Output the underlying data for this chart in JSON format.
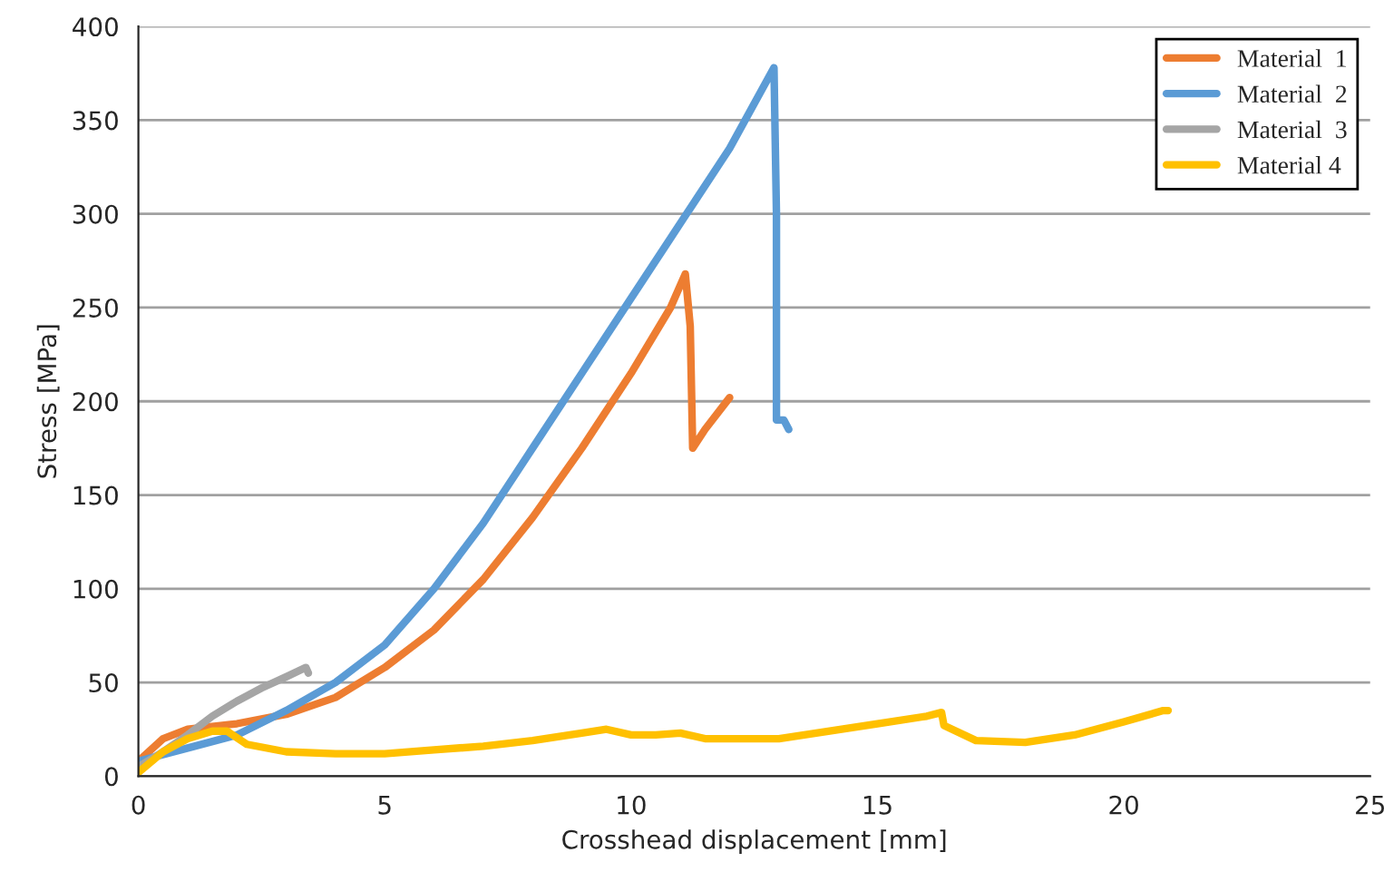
{
  "chart_data": {
    "type": "line",
    "xlabel": "Crosshead displacement [mm]",
    "ylabel": "Stress [MPa]",
    "xlim": [
      0,
      25
    ],
    "xticks": [
      0,
      5,
      10,
      15,
      20,
      25
    ],
    "ylim": [
      0,
      400
    ],
    "yticks": [
      0,
      50,
      100,
      150,
      200,
      250,
      300,
      350,
      400
    ],
    "grid": "y",
    "legend": "top right",
    "marker": "none",
    "line_style": "solid",
    "series": [
      {
        "name": "Material  1",
        "color": "#ed7d31",
        "x": [
          0,
          0.5,
          1,
          2,
          3,
          4,
          5,
          6,
          7,
          8,
          9,
          10,
          10.8,
          11.1,
          11.2,
          11.25,
          11.5,
          12
        ],
        "values": [
          8,
          20,
          25,
          28,
          33,
          42,
          58,
          78,
          105,
          138,
          175,
          215,
          250,
          268,
          240,
          175,
          185,
          202
        ]
      },
      {
        "name": "Material  2",
        "color": "#5b9bd5",
        "x": [
          0,
          1,
          2,
          3,
          4,
          5,
          6,
          7,
          8,
          9,
          10,
          11,
          12,
          12.9,
          12.95,
          12.95,
          13.1,
          13.2
        ],
        "values": [
          8,
          15,
          22,
          35,
          50,
          70,
          100,
          135,
          175,
          215,
          255,
          295,
          335,
          378,
          300,
          190,
          190,
          185
        ]
      },
      {
        "name": "Material  3",
        "color": "#a5a5a5",
        "x": [
          0,
          0.5,
          1,
          1.5,
          2,
          2.5,
          3,
          3.4,
          3.45
        ],
        "values": [
          5,
          13,
          22,
          32,
          40,
          47,
          53,
          58,
          55
        ]
      },
      {
        "name": "Material 4",
        "color": "#ffc000",
        "x": [
          0,
          0.5,
          1,
          1.5,
          1.8,
          2.2,
          3,
          4,
          5,
          6,
          7,
          8,
          9,
          9.5,
          10,
          10.5,
          11,
          11.5,
          12,
          13,
          14,
          15,
          16,
          16.3,
          16.35,
          17,
          18,
          19,
          20,
          20.8,
          20.9
        ],
        "values": [
          2,
          13,
          20,
          24,
          24,
          17,
          13,
          12,
          12,
          14,
          16,
          19,
          23,
          25,
          22,
          22,
          23,
          20,
          20,
          20,
          24,
          28,
          32,
          34,
          27,
          19,
          18,
          22,
          29,
          35,
          35
        ]
      }
    ]
  }
}
